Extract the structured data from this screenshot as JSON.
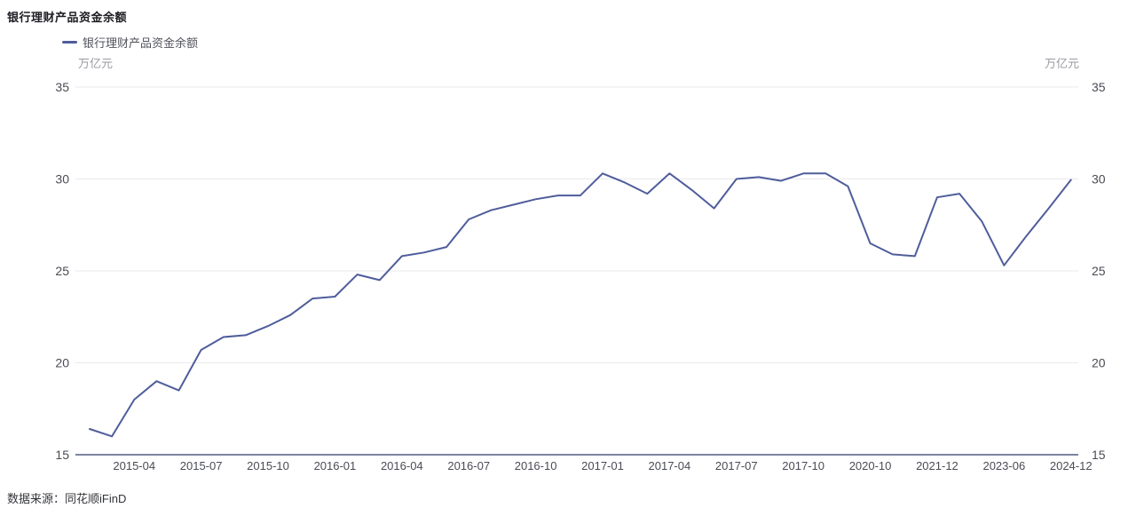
{
  "page": {
    "title": "银行理财产品资金余额",
    "source": "数据来源：同花顺iFinD"
  },
  "legend": {
    "label": "银行理财产品资金余额"
  },
  "units": {
    "left": "万亿元",
    "right": "万亿元"
  },
  "colors": {
    "line": "#4f5d9b",
    "grid": "#eaeaef",
    "axis": "#515d80",
    "tick_text": "#4a4b55",
    "unit_text": "#9a9aa2"
  },
  "chart_data": {
    "type": "line",
    "title": "银行理财产品资金余额",
    "series": [
      {
        "name": "银行理财产品资金余额",
        "values": [
          16.4,
          16.0,
          18.0,
          19.0,
          18.5,
          20.7,
          21.4,
          21.5,
          22.0,
          22.6,
          23.5,
          23.6,
          24.8,
          24.5,
          25.8,
          26.0,
          26.3,
          27.8,
          28.3,
          28.6,
          28.9,
          29.1,
          29.1,
          30.3,
          29.8,
          29.2,
          30.3,
          29.4,
          28.4,
          30.0,
          30.1,
          29.9,
          30.3,
          30.3,
          29.6,
          26.5,
          25.9,
          25.8,
          29.0,
          29.2,
          27.7,
          25.3,
          26.9,
          28.4,
          29.95
        ]
      }
    ],
    "point_count": 45,
    "x_tick_labels": [
      "2015-04",
      "2015-07",
      "2015-10",
      "2016-01",
      "2016-04",
      "2016-07",
      "2016-10",
      "2017-01",
      "2017-04",
      "2017-07",
      "2017-10",
      "2020-10",
      "2021-12",
      "2023-06",
      "2024-12"
    ],
    "x_tick_start_index": 2,
    "x_tick_every": 3,
    "ylabel": "万亿元",
    "ylim": [
      15,
      35
    ],
    "y_ticks": [
      15,
      20,
      25,
      30,
      35
    ],
    "y_axis_sides": [
      "left",
      "right"
    ],
    "grid": true,
    "legend_position": "top-left"
  }
}
